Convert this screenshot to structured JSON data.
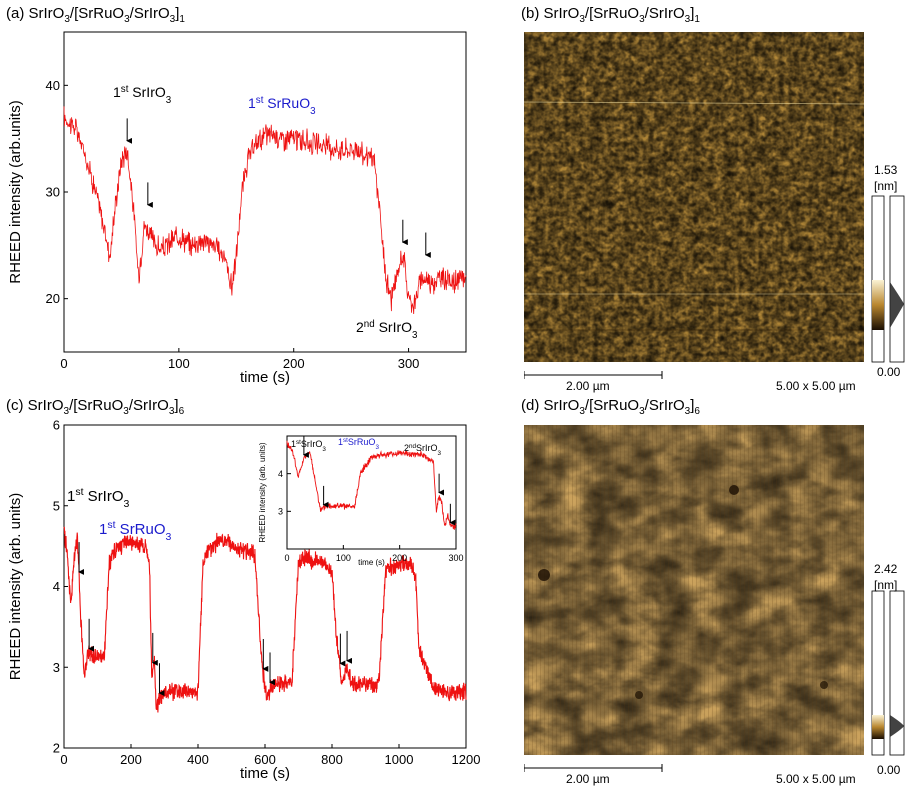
{
  "panels": {
    "a": {
      "label": "(a)",
      "title_main": "SrIrO",
      "title_sub1": "3",
      "title_mid": "/[SrRuO",
      "title_sub2": "3",
      "title_mid2": "/SrIrO",
      "title_sub3": "3",
      "title_end": "]",
      "title_sub4": "1"
    },
    "b": {
      "label": "(b)",
      "title_main": "SrIrO",
      "title_sub1": "3",
      "title_mid": "/[SrRuO",
      "title_sub2": "3",
      "title_mid2": "/SrIrO",
      "title_sub3": "3",
      "title_end": "]",
      "title_sub4": "1"
    },
    "c": {
      "label": "(c)",
      "title_main": "SrIrO",
      "title_sub1": "3",
      "title_mid": "/[SrRuO",
      "title_sub2": "3",
      "title_mid2": "/SrIrO",
      "title_sub3": "3",
      "title_end": "]",
      "title_sub4": "6"
    },
    "d": {
      "label": "(d)",
      "title_main": "SrIrO",
      "title_sub1": "3",
      "title_mid": "/[SrRuO",
      "title_sub2": "3",
      "title_mid2": "/SrIrO",
      "title_sub3": "3",
      "title_end": "]",
      "title_sub4": "6"
    }
  },
  "afm": {
    "b": {
      "scale_max": "1.53",
      "scale_unit": "[nm]",
      "scale_min": "0.00",
      "scalebar": "2.00 µm",
      "size": "5.00 x 5.00 µm"
    },
    "d": {
      "scale_max": "2.42",
      "scale_unit": "[nm]",
      "scale_min": "0.00",
      "scalebar": "2.00 µm",
      "size": "5.00 x 5.00 µm"
    }
  },
  "colors": {
    "trace": "#ee1111",
    "blue_label": "#1a1acc",
    "afm_dark": "#3a2308",
    "afm_mid": "#b8862e",
    "afm_light": "#f3e2a6"
  },
  "chart_data": [
    {
      "type": "line",
      "panel": "a",
      "xlabel": "time (s)",
      "ylabel": "RHEED intensity (arb.units)",
      "xlim": [
        0,
        350
      ],
      "ylim": [
        15,
        45
      ],
      "xticks": [
        "0",
        "100",
        "200",
        "300"
      ],
      "yticks": [
        "20",
        "30",
        "40"
      ],
      "series": [
        {
          "x": [
            0,
            10,
            20,
            30,
            40,
            45,
            50,
            55,
            60,
            65,
            70,
            75,
            80,
            85,
            90,
            100,
            110,
            120,
            130,
            140,
            146,
            150,
            155,
            160,
            170,
            180,
            190,
            200,
            220,
            240,
            255,
            260,
            270,
            275,
            280,
            285,
            290,
            295,
            300,
            305,
            310,
            315,
            320,
            330,
            340,
            350
          ],
          "y": [
            37,
            36,
            33,
            29,
            24,
            29,
            33,
            34,
            29,
            22,
            27,
            26,
            25,
            24.5,
            25,
            26,
            25,
            25.5,
            25,
            24,
            21,
            24,
            30,
            33,
            35,
            35.5,
            35,
            35,
            34.5,
            34,
            34,
            33.5,
            33,
            28,
            22,
            20,
            22,
            24.5,
            20,
            19.5,
            21.5,
            22,
            21.5,
            22,
            21.5,
            22
          ]
        }
      ],
      "annotations": [
        {
          "text": "1",
          "sup": "st",
          "rest": " SrIrO",
          "sub": "3",
          "x": 55,
          "y": 36.5,
          "arrows": [
            55,
            73
          ],
          "color": "black"
        },
        {
          "text": "1",
          "sup": "st",
          "rest": " SrRuO",
          "sub": "3",
          "x": 200,
          "y": 37,
          "color": "blue"
        },
        {
          "text": "2",
          "sup": "nd",
          "rest": " SrIrO",
          "sub": "3",
          "x": 305,
          "y": 16.5,
          "arrows": [
            295,
            315
          ],
          "color": "black"
        }
      ]
    },
    {
      "type": "line",
      "panel": "c",
      "xlabel": "time (s)",
      "ylabel": "RHEED intensity (arb. units)",
      "xlim": [
        0,
        1200
      ],
      "ylim": [
        2,
        6
      ],
      "xticks": [
        "0",
        "200",
        "400",
        "600",
        "800",
        "1000",
        "1200"
      ],
      "yticks": [
        "2",
        "3",
        "4",
        "5",
        "6"
      ],
      "series": [
        {
          "x": [
            0,
            10,
            20,
            30,
            40,
            50,
            60,
            70,
            90,
            120,
            135,
            160,
            200,
            240,
            255,
            262,
            270,
            275,
            285,
            300,
            350,
            400,
            415,
            430,
            470,
            520,
            570,
            585,
            595,
            605,
            620,
            680,
            700,
            720,
            760,
            800,
            815,
            830,
            845,
            860,
            900,
            940,
            960,
            1000,
            1040,
            1050,
            1060,
            1080,
            1100,
            1150,
            1200
          ],
          "y": [
            4.7,
            4.4,
            3.8,
            4.3,
            4.6,
            3.6,
            2.9,
            3.15,
            3.15,
            3.1,
            4.3,
            4.5,
            4.55,
            4.5,
            4.3,
            2.9,
            3.1,
            2.5,
            2.6,
            2.7,
            2.7,
            2.7,
            4.3,
            4.45,
            4.6,
            4.45,
            4.4,
            3.4,
            2.9,
            2.6,
            2.8,
            2.8,
            4.3,
            4.35,
            4.3,
            4.2,
            3.3,
            2.8,
            3.0,
            2.8,
            2.8,
            2.8,
            4.2,
            4.3,
            4.25,
            4.1,
            3.2,
            3.0,
            2.75,
            2.7,
            2.7
          ]
        }
      ],
      "annotations": [
        {
          "text": "1",
          "sup": "st",
          "rest": " SrIrO",
          "sub": "3",
          "x": 60,
          "y": 5.2,
          "color": "black"
        },
        {
          "text": "1",
          "sup": "st",
          "rest": " SrRuO",
          "sub": "3",
          "x": 150,
          "y": 4.75,
          "color": "blue"
        }
      ],
      "arrows_x": [
        45,
        75,
        265,
        285,
        595,
        615,
        825,
        845
      ]
    },
    {
      "type": "line",
      "panel": "c-inset",
      "xlabel": "time (s)",
      "ylabel": "RHEED intensity (arb. units)",
      "xlim": [
        0,
        300
      ],
      "ylim": [
        2,
        5
      ],
      "xticks": [
        "0",
        "100",
        "200",
        "300"
      ],
      "yticks": [
        "3",
        "4"
      ],
      "series": [
        {
          "x": [
            0,
            10,
            20,
            30,
            40,
            50,
            60,
            70,
            90,
            120,
            130,
            150,
            170,
            200,
            240,
            260,
            265,
            270,
            275,
            280,
            285,
            290,
            300
          ],
          "y": [
            4.8,
            4.6,
            3.9,
            4.4,
            4.6,
            3.8,
            3.0,
            3.15,
            3.15,
            3.1,
            4.0,
            4.45,
            4.5,
            4.55,
            4.5,
            4.3,
            3.0,
            3.4,
            3.2,
            2.6,
            2.9,
            2.6,
            2.6
          ]
        }
      ],
      "annotations": [
        {
          "text": "1",
          "sup": "st",
          "rest": "SrIrO",
          "sub": "3",
          "color": "black"
        },
        {
          "text": "1",
          "sup": "st",
          "rest": "SrRuO",
          "sub": "3",
          "color": "blue"
        },
        {
          "text": "2",
          "sup": "nd",
          "rest": "SrIrO",
          "sub": "3",
          "color": "black"
        }
      ],
      "arrows_x": [
        30,
        65,
        270,
        290
      ]
    }
  ]
}
